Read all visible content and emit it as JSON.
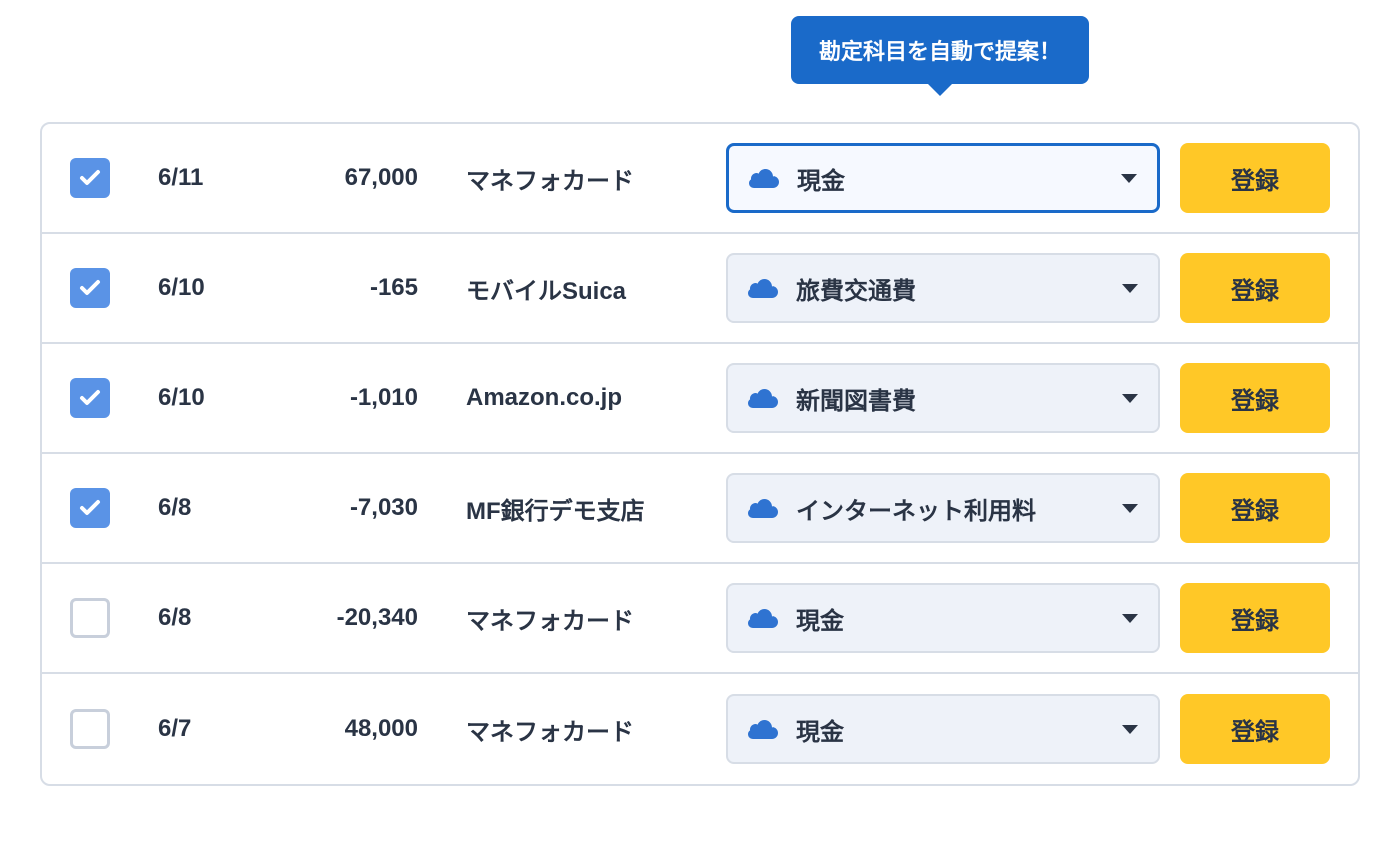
{
  "tooltip": {
    "text": "勘定科目を自動で提案！"
  },
  "button_label": "登録",
  "colors": {
    "tooltip_bg": "#1a6ac9",
    "checkbox_checked_bg": "#5a93e6",
    "select_bg": "#eef2f9",
    "select_highlight_bg": "#f6f9ff",
    "select_highlight_border": "#1a6ac9",
    "button_bg": "#ffc827",
    "text": "#2a3445",
    "cloud_icon": "#2f73d1"
  },
  "rows": [
    {
      "checked": true,
      "date": "6/11",
      "amount": "67,000",
      "merchant": "マネフォカード",
      "category": "現金",
      "highlighted": true
    },
    {
      "checked": true,
      "date": "6/10",
      "amount": "-165",
      "merchant": "モバイルSuica",
      "category": "旅費交通費",
      "highlighted": false
    },
    {
      "checked": true,
      "date": "6/10",
      "amount": "-1,010",
      "merchant": "Amazon.co.jp",
      "category": "新聞図書費",
      "highlighted": false
    },
    {
      "checked": true,
      "date": "6/8",
      "amount": "-7,030",
      "merchant": "MF銀行デモ支店",
      "category": "インターネット利用料",
      "highlighted": false
    },
    {
      "checked": false,
      "date": "6/8",
      "amount": "-20,340",
      "merchant": "マネフォカード",
      "category": "現金",
      "highlighted": false
    },
    {
      "checked": false,
      "date": "6/7",
      "amount": "48,000",
      "merchant": "マネフォカード",
      "category": "現金",
      "highlighted": false
    }
  ]
}
